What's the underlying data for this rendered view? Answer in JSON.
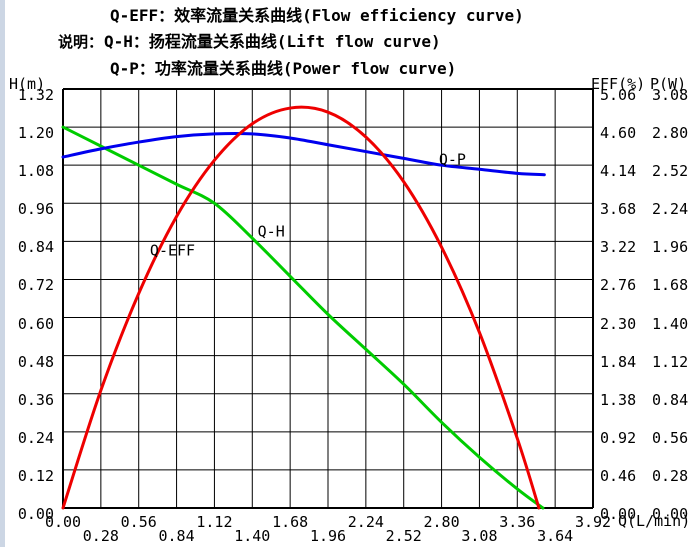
{
  "window": {
    "background": "#ffffff",
    "left_edge_color": "#ccd6e4"
  },
  "legend": {
    "intro_label": "说明：",
    "lines": [
      "Q-EFF：效率流量关系曲线(Flow efficiency curve)",
      "Q-H：扬程流量关系曲线(Lift flow curve)",
      "Q-P：功率流量关系曲线(Power flow curve)"
    ]
  },
  "chart_data": {
    "type": "line",
    "grid": true,
    "grid_color": "#000000",
    "plot_border_color": "#000000",
    "legend_position": "top",
    "axes": {
      "x": {
        "label": "Q(L/min)",
        "min": 0,
        "max": 3.92,
        "step": 0.28,
        "ticks": [
          "0.00",
          "0.28",
          "0.56",
          "0.84",
          "1.12",
          "1.40",
          "1.68",
          "1.96",
          "2.24",
          "2.52",
          "2.80",
          "3.08",
          "3.36",
          "3.64",
          "3.92"
        ]
      },
      "left": {
        "label": "H(m)",
        "min": 0,
        "max": 1.32,
        "step": 0.12,
        "ticks": [
          "1.32",
          "1.20",
          "1.08",
          "0.96",
          "0.84",
          "0.72",
          "0.60",
          "0.48",
          "0.36",
          "0.24",
          "0.12",
          "0.00"
        ]
      },
      "right_eff": {
        "label": "EFF(%)",
        "min": 0,
        "max": 5.06,
        "step": 0.46,
        "ticks": [
          "5.06",
          "4.60",
          "4.14",
          "3.68",
          "3.22",
          "2.76",
          "2.30",
          "1.84",
          "1.38",
          "0.92",
          "0.46",
          "0.00"
        ]
      },
      "right_p": {
        "label": "P(W)",
        "min": 0,
        "max": 3.08,
        "step": 0.28,
        "ticks": [
          "3.08",
          "2.80",
          "2.52",
          "2.24",
          "1.96",
          "1.68",
          "1.40",
          "1.12",
          "0.84",
          "0.56",
          "0.28",
          "0.00"
        ]
      }
    },
    "series": [
      {
        "name": "Q-H",
        "description": "扬程流量关系曲线(Lift flow curve)",
        "axis": "left",
        "unit": "m",
        "color": "#00cc00",
        "points": [
          [
            0,
            1.2
          ],
          [
            0.28,
            1.14
          ],
          [
            0.56,
            1.08
          ],
          [
            0.84,
            1.02
          ],
          [
            1.12,
            0.96
          ],
          [
            1.4,
            0.85
          ],
          [
            1.68,
            0.73
          ],
          [
            1.96,
            0.61
          ],
          [
            2.24,
            0.5
          ],
          [
            2.52,
            0.39
          ],
          [
            2.8,
            0.27
          ],
          [
            3.08,
            0.16
          ],
          [
            3.36,
            0.06
          ],
          [
            3.55,
            0.0
          ]
        ],
        "label_at": [
          1.54,
          0.87
        ]
      },
      {
        "name": "Q-P",
        "description": "功率流量关系曲线(Power flow curve)",
        "axis": "right_p",
        "unit": "W",
        "color": "#0000ee",
        "points": [
          [
            0,
            2.58
          ],
          [
            0.28,
            2.64
          ],
          [
            0.56,
            2.69
          ],
          [
            0.84,
            2.73
          ],
          [
            1.12,
            2.75
          ],
          [
            1.4,
            2.75
          ],
          [
            1.68,
            2.72
          ],
          [
            1.96,
            2.67
          ],
          [
            2.24,
            2.62
          ],
          [
            2.52,
            2.57
          ],
          [
            2.8,
            2.52
          ],
          [
            3.08,
            2.49
          ],
          [
            3.36,
            2.46
          ],
          [
            3.56,
            2.45
          ]
        ],
        "label_at": [
          2.88,
          2.56
        ]
      },
      {
        "name": "Q-EFF",
        "description": "效率流量关系曲线(Flow efficiency curve)",
        "axis": "right_eff",
        "unit": "%",
        "color": "#ee0000",
        "points": [
          [
            0,
            0.0
          ],
          [
            0.28,
            1.42
          ],
          [
            0.56,
            2.59
          ],
          [
            0.84,
            3.52
          ],
          [
            1.12,
            4.2
          ],
          [
            1.4,
            4.64
          ],
          [
            1.68,
            4.83
          ],
          [
            1.96,
            4.78
          ],
          [
            2.24,
            4.48
          ],
          [
            2.52,
            3.94
          ],
          [
            2.8,
            3.15
          ],
          [
            3.08,
            2.12
          ],
          [
            3.36,
            0.84
          ],
          [
            3.52,
            0.0
          ]
        ],
        "label_at": [
          0.81,
          3.1
        ]
      }
    ]
  }
}
